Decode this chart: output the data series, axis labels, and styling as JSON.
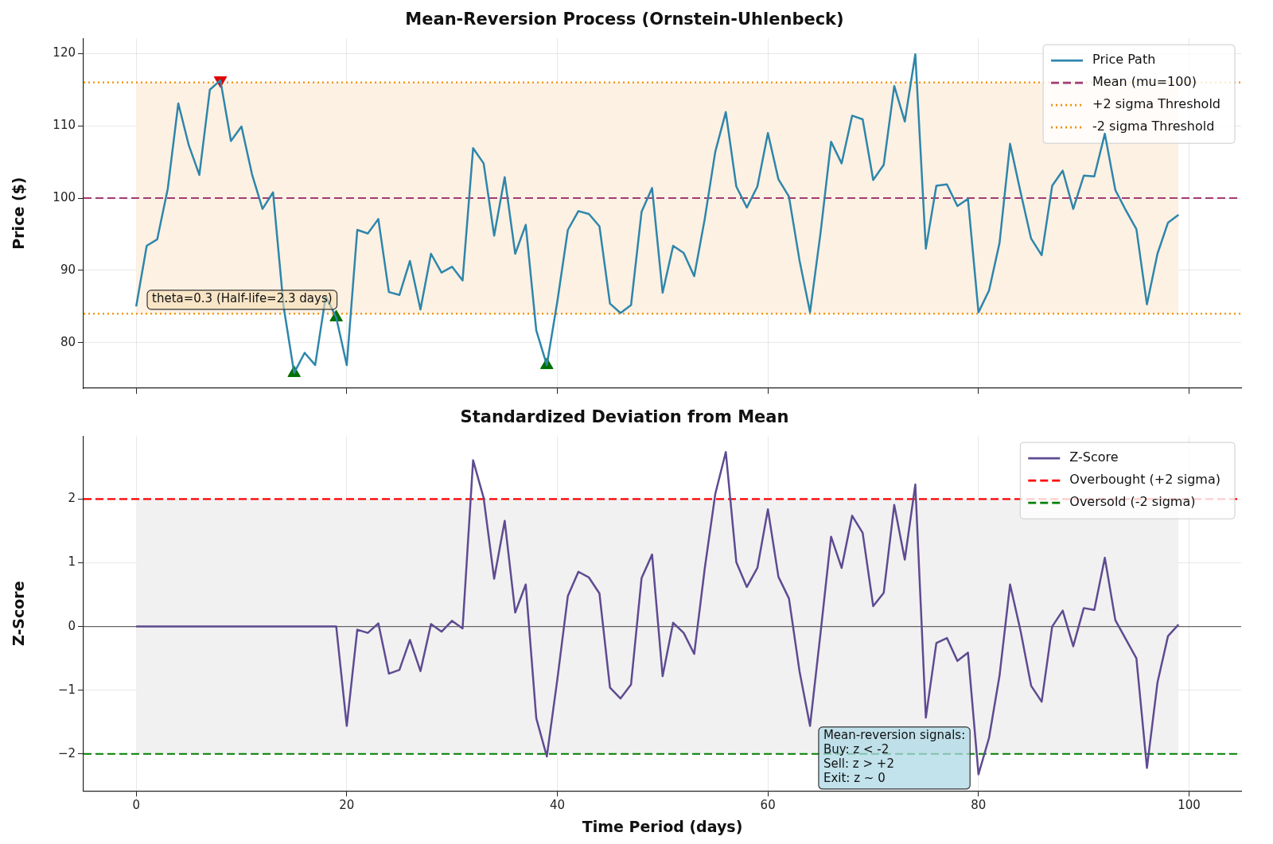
{
  "chart_data": [
    {
      "type": "line",
      "title": "Mean-Reversion Process (Ornstein-Uhlenbeck)",
      "ylabel": "Price ($)",
      "x": [
        0,
        1,
        2,
        3,
        4,
        5,
        6,
        7,
        8,
        9,
        10,
        11,
        12,
        13,
        14,
        15,
        16,
        17,
        18,
        19,
        20,
        21,
        22,
        23,
        24,
        25,
        26,
        27,
        28,
        29,
        30,
        31,
        32,
        33,
        34,
        35,
        36,
        37,
        38,
        39,
        40,
        41,
        42,
        43,
        44,
        45,
        46,
        47,
        48,
        49,
        50,
        51,
        52,
        53,
        54,
        55,
        56,
        57,
        58,
        59,
        60,
        61,
        62,
        63,
        64,
        65,
        66,
        67,
        68,
        69,
        70,
        71,
        72,
        73,
        74,
        75,
        76,
        77,
        78,
        79,
        80,
        81,
        82,
        83,
        84,
        85,
        86,
        87,
        88,
        89,
        90,
        91,
        92,
        93,
        94,
        95,
        96,
        97,
        98,
        99
      ],
      "series": [
        {
          "name": "Price Path",
          "color": "#2e86ab",
          "values": [
            85.0,
            93.4,
            94.3,
            101.3,
            113.1,
            107.3,
            103.2,
            115.0,
            116.3,
            107.9,
            109.9,
            103.3,
            98.5,
            100.8,
            85.0,
            75.8,
            78.6,
            76.9,
            86.4,
            83.5,
            76.9,
            95.6,
            95.1,
            97.1,
            87.0,
            86.6,
            91.3,
            84.6,
            92.3,
            89.7,
            90.5,
            88.6,
            106.9,
            104.8,
            94.8,
            102.9,
            92.3,
            96.3,
            81.7,
            76.9,
            85.7,
            95.6,
            98.2,
            97.8,
            96.1,
            85.4,
            84.1,
            85.2,
            98.1,
            101.4,
            86.9,
            93.4,
            92.4,
            89.2,
            97.1,
            106.4,
            111.9,
            101.6,
            98.7,
            101.6,
            109.0,
            102.6,
            100.2,
            91.4,
            84.2,
            95.2,
            107.8,
            104.8,
            111.4,
            110.9,
            102.5,
            104.6,
            115.5,
            110.6,
            119.9,
            93.0,
            101.7,
            101.9,
            98.9,
            99.9,
            84.2,
            87.2,
            93.8,
            107.5,
            100.8,
            94.4,
            92.1,
            101.7,
            103.8,
            98.5,
            103.1,
            103.0,
            108.9,
            101.1,
            98.3,
            95.7,
            85.3,
            92.3,
            96.6,
            97.7
          ]
        },
        {
          "type": "scatter",
          "x": [
            8
          ],
          "values": [
            116.3
          ],
          "color": "#e00000",
          "marker": "triangle_down"
        },
        {
          "type": "scatter",
          "x": [
            15,
            19,
            39
          ],
          "values": [
            75.8,
            83.5,
            76.9
          ],
          "color": "#007000",
          "marker": "triangle"
        }
      ],
      "xlim": [
        -5,
        104.95
      ],
      "xticks": [
        0,
        20,
        40,
        60,
        80,
        100
      ],
      "ylim": [
        73.7,
        122.1
      ],
      "yticks": [
        80,
        90,
        100,
        110,
        120
      ],
      "ref_lines": [
        {
          "axis": "y",
          "value": 100,
          "label": "Mean (mu=100)",
          "color": "#a23b72",
          "line_style": "dashed"
        },
        {
          "axis": "y",
          "value": 116,
          "label": "+2 sigma Threshold",
          "color": "#f18f01",
          "line_style": "dotted"
        },
        {
          "axis": "y",
          "value": 84,
          "label": "-2 sigma Threshold",
          "color": "#f18f01",
          "line_style": "dotted"
        }
      ],
      "bands": [
        {
          "axis": "y",
          "from": 84,
          "to": 116,
          "color": "#fdf1e3"
        }
      ],
      "annotations": [
        "theta=0.3 (Half-life=2.3 days)"
      ],
      "grid": true,
      "legend": "top right",
      "tick_labels": "y"
    },
    {
      "type": "line",
      "title": "Standardized Deviation from Mean",
      "xlabel": "Time Period (days)",
      "ylabel": "Z-Score",
      "x": [
        0,
        1,
        2,
        3,
        4,
        5,
        6,
        7,
        8,
        9,
        10,
        11,
        12,
        13,
        14,
        15,
        16,
        17,
        18,
        19,
        20,
        21,
        22,
        23,
        24,
        25,
        26,
        27,
        28,
        29,
        30,
        31,
        32,
        33,
        34,
        35,
        36,
        37,
        38,
        39,
        40,
        41,
        42,
        43,
        44,
        45,
        46,
        47,
        48,
        49,
        50,
        51,
        52,
        53,
        54,
        55,
        56,
        57,
        58,
        59,
        60,
        61,
        62,
        63,
        64,
        65,
        66,
        67,
        68,
        69,
        70,
        71,
        72,
        73,
        74,
        75,
        76,
        77,
        78,
        79,
        80,
        81,
        82,
        83,
        84,
        85,
        86,
        87,
        88,
        89,
        90,
        91,
        92,
        93,
        94,
        95,
        96,
        97,
        98,
        99
      ],
      "series": [
        {
          "name": "Z-Score",
          "color": "#5e4b91",
          "values": [
            0,
            0,
            0,
            0,
            0,
            0,
            0,
            0,
            0,
            0,
            0,
            0,
            0,
            0,
            0,
            0,
            0,
            0,
            0,
            0,
            -1.56,
            -0.05,
            -0.1,
            0.05,
            -0.74,
            -0.68,
            -0.21,
            -0.7,
            0.04,
            -0.08,
            0.09,
            -0.03,
            2.61,
            2.02,
            0.75,
            1.66,
            0.22,
            0.66,
            -1.44,
            -2.04,
            -0.83,
            0.48,
            0.86,
            0.77,
            0.52,
            -0.96,
            -1.13,
            -0.91,
            0.76,
            1.13,
            -0.78,
            0.06,
            -0.1,
            -0.43,
            0.91,
            2.08,
            2.74,
            1.01,
            0.62,
            0.92,
            1.84,
            0.78,
            0.44,
            -0.7,
            -1.56,
            -0.1,
            1.41,
            0.92,
            1.74,
            1.47,
            0.32,
            0.53,
            1.91,
            1.05,
            2.23,
            -1.43,
            -0.26,
            -0.18,
            -0.54,
            -0.41,
            -2.32,
            -1.75,
            -0.77,
            0.66,
            -0.07,
            -0.93,
            -1.18,
            0.0,
            0.25,
            -0.31,
            0.29,
            0.26,
            1.08,
            0.1,
            -0.2,
            -0.5,
            -2.22,
            -0.88,
            -0.15,
            0.03
          ]
        }
      ],
      "xlim": [
        -5,
        104.95
      ],
      "xticks": [
        0,
        20,
        40,
        60,
        80,
        100
      ],
      "ylim": [
        -2.58,
        2.99
      ],
      "yticks": [
        {
          "value": -2,
          "label": "−2"
        },
        {
          "value": -1,
          "label": "−1"
        },
        0,
        1,
        2
      ],
      "ref_lines": [
        {
          "axis": "y",
          "value": 2,
          "label": "Overbought (+2 sigma)",
          "color": "#ff0000",
          "line_style": "dashed"
        },
        {
          "axis": "y",
          "value": -2,
          "label": "Oversold (-2 sigma)",
          "color": "#008000",
          "line_style": "dashed"
        },
        {
          "axis": "y",
          "value": 0,
          "color": "#666666",
          "line_style": "solid"
        }
      ],
      "bands": [
        {
          "axis": "y",
          "from": -2,
          "to": 2,
          "color": "#f1f1f1"
        }
      ],
      "annotations": [
        "Mean-reversion signals:\nBuy: z < -2\nSell: z > +2\nExit: z ~ 0"
      ],
      "grid": true,
      "legend": "top right"
    }
  ]
}
